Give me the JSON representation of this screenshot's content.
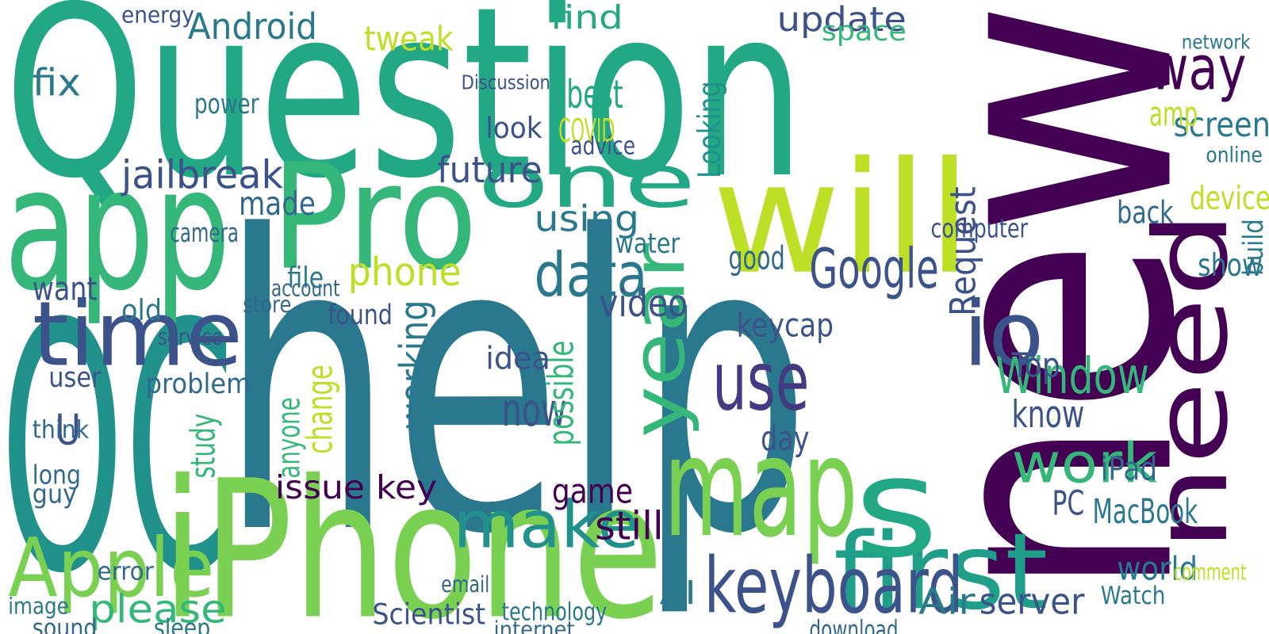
{
  "chart_data": {
    "type": "wordcloud",
    "words": [
      "help",
      "new",
      "Question",
      "OC",
      "iPhone",
      "app",
      "Pro",
      "will",
      "map",
      "Apple",
      "first",
      "time",
      "keyboard",
      "need",
      "io",
      "one",
      "year",
      "s",
      "Window",
      "work",
      "make",
      "use",
      "data",
      "Google",
      "update",
      "way",
      "screen",
      "jailbreak",
      "Android",
      "please",
      "MacBook",
      "iPad",
      "world",
      "Scientist",
      "game",
      "still",
      "issue key",
      "best",
      "find",
      "tweak",
      "phone",
      "future",
      "COVID",
      "using",
      "now",
      "know",
      "Top",
      "video",
      "Looking",
      "Request",
      "fix",
      "want",
      "made",
      "problem",
      "user",
      "U",
      "study",
      "AI",
      "Air",
      "server",
      "download",
      "sound",
      "possible",
      "working",
      "change",
      "anyone",
      "PC",
      "amp",
      "back",
      "device",
      "show",
      "day",
      "keycap",
      "good",
      "idea",
      "energy",
      "space",
      "computer",
      "water",
      "old",
      "file",
      "camera",
      "think",
      "long",
      "guy",
      "image",
      "error",
      "Watch",
      "comment",
      "network",
      "online",
      "Discussion",
      "build",
      "advice",
      "look",
      "found",
      "power",
      "store",
      "account",
      "service",
      "email",
      "technology",
      "sleep",
      "internet"
    ],
    "values": [
      500,
      410,
      290,
      420,
      235,
      210,
      180,
      190,
      170,
      100,
      130,
      110,
      95,
      125,
      110,
      90,
      90,
      170,
      62,
      68,
      80,
      100,
      75,
      68,
      42,
      75,
      42,
      48,
      44,
      48,
      42,
      40,
      40,
      36,
      42,
      48,
      40,
      48,
      40,
      42,
      48,
      44,
      40,
      44,
      56,
      46,
      42,
      46,
      38,
      44,
      46,
      40,
      40,
      34,
      34,
      52,
      42,
      40,
      44,
      44,
      32,
      30,
      44,
      48,
      44,
      38,
      42,
      42,
      38,
      40,
      38,
      42,
      40,
      40,
      38,
      28,
      34,
      32,
      34,
      36,
      36,
      32,
      30,
      32,
      32,
      28,
      30,
      30,
      28,
      24,
      26,
      24,
      34,
      30,
      36,
      34,
      34,
      28,
      28,
      28,
      28,
      30,
      30,
      26
    ],
    "colors": [
      "#2a788e",
      "#440154",
      "#22a884",
      "#21918c",
      "#7ad151",
      "#35b779",
      "#35b779",
      "#bddf26",
      "#7ad151",
      "#7ad151",
      "#1f9e89",
      "#3b528b",
      "#3b528b",
      "#440154",
      "#3b528b",
      "#22a884",
      "#35b779",
      "#22a884",
      "#35b779",
      "#35b779",
      "#21918c",
      "#443983",
      "#2a788e",
      "#3b528b",
      "#3b528b",
      "#440154",
      "#2a788e",
      "#3b528b",
      "#2a788e",
      "#35b779",
      "#2a788e",
      "#31688e",
      "#2a788e",
      "#3b528b",
      "#440154",
      "#440154",
      "#440154",
      "#22a884",
      "#22a884",
      "#bddf26",
      "#bddf26",
      "#3b528b",
      "#bddf26",
      "#2a788e",
      "#3b528b",
      "#3b528b",
      "#3b528b",
      "#3b528b",
      "#21918c",
      "#3b528b",
      "#2a788e",
      "#3b528b",
      "#31688e",
      "#31688e",
      "#3b528b",
      "#3b528b",
      "#35b779",
      "#2a788e",
      "#2a788e",
      "#3b528b",
      "#31688e",
      "#31688e",
      "#35b779",
      "#2a788e",
      "#bddf26",
      "#35b779",
      "#3b528b",
      "#bddf26",
      "#31688e",
      "#bddf26",
      "#2a788e",
      "#3b528b",
      "#3b528b",
      "#31688e",
      "#3b528b",
      "#3b528b",
      "#35b779",
      "#3b528b",
      "#2a788e",
      "#2a788e",
      "#2a788e",
      "#31688e",
      "#31688e",
      "#31688e",
      "#31688e",
      "#2a788e",
      "#31688e",
      "#2a788e",
      "#bddf26",
      "#2a788e",
      "#2a788e",
      "#3b528b",
      "#2a788e",
      "#3b528b",
      "#3b528b",
      "#3b528b",
      "#2a788e",
      "#31688e",
      "#31688e",
      "#3b528b",
      "#31688e",
      "#2a788e",
      "#2a788e",
      "#31688e"
    ]
  }
}
